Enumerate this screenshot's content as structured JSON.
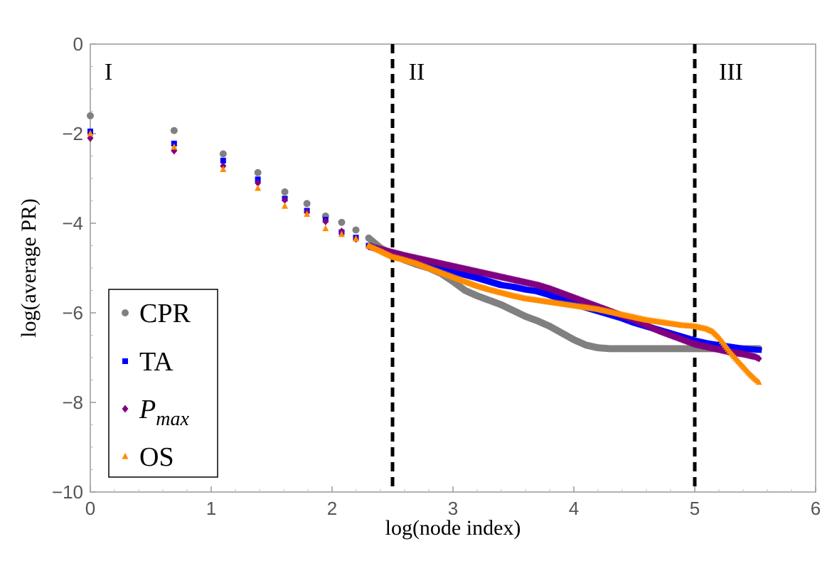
{
  "chart_data": {
    "type": "scatter",
    "title": "",
    "xlabel": "log(node index)",
    "ylabel": "log(average PR)",
    "xlim": [
      0,
      6
    ],
    "ylim": [
      -10,
      0
    ],
    "xticks": [
      "0",
      "1",
      "2",
      "3",
      "4",
      "5",
      "6"
    ],
    "yticks": [
      "0",
      "−2",
      "−4",
      "−6",
      "−8",
      "−10"
    ],
    "grid": false,
    "legend_position": "bottom-left",
    "vertical_lines": [
      {
        "x": 2.5,
        "style": "dashed",
        "color": "#000000"
      },
      {
        "x": 5.0,
        "style": "dashed",
        "color": "#000000"
      }
    ],
    "region_labels": [
      {
        "text": "I",
        "x": 0.15,
        "y": -0.6
      },
      {
        "text": "II",
        "x": 2.7,
        "y": -0.6
      },
      {
        "text": "III",
        "x": 5.3,
        "y": -0.6
      }
    ],
    "series": [
      {
        "name": "CPR",
        "marker": "circle",
        "color": "#808080",
        "x": [
          0,
          0.693,
          1.099,
          1.386,
          1.609,
          1.792,
          1.946,
          2.079,
          2.197,
          2.303,
          2.4,
          2.5,
          2.6,
          2.7,
          2.8,
          2.9,
          3.0,
          3.1,
          3.2,
          3.3,
          3.4,
          3.5,
          3.6,
          3.7,
          3.8,
          3.9,
          4.0,
          4.1,
          4.2,
          4.3,
          4.4,
          4.5,
          4.6,
          4.7,
          4.8,
          4.9,
          5.0,
          5.1,
          5.2,
          5.3,
          5.4,
          5.5,
          5.53
        ],
        "y": [
          -1.6,
          -1.93,
          -2.45,
          -2.87,
          -3.3,
          -3.56,
          -3.84,
          -3.98,
          -4.15,
          -4.33,
          -4.55,
          -4.7,
          -4.82,
          -4.92,
          -5.0,
          -5.12,
          -5.3,
          -5.5,
          -5.62,
          -5.72,
          -5.82,
          -5.95,
          -6.08,
          -6.18,
          -6.3,
          -6.45,
          -6.6,
          -6.72,
          -6.78,
          -6.8,
          -6.8,
          -6.8,
          -6.8,
          -6.8,
          -6.8,
          -6.8,
          -6.8,
          -6.8,
          -6.8,
          -6.8,
          -6.8,
          -6.8,
          -6.8
        ]
      },
      {
        "name": "TA",
        "marker": "square",
        "color": "#0000ff",
        "x": [
          0,
          0.693,
          1.099,
          1.386,
          1.609,
          1.792,
          1.946,
          2.079,
          2.197,
          2.303,
          2.4,
          2.5,
          2.6,
          2.7,
          2.8,
          2.9,
          3.0,
          3.1,
          3.2,
          3.3,
          3.4,
          3.5,
          3.6,
          3.7,
          3.8,
          3.9,
          4.0,
          4.1,
          4.2,
          4.3,
          4.4,
          4.5,
          4.6,
          4.7,
          4.8,
          4.9,
          5.0,
          5.1,
          5.2,
          5.3,
          5.4,
          5.5,
          5.53
        ],
        "y": [
          -1.95,
          -2.22,
          -2.6,
          -3.02,
          -3.45,
          -3.72,
          -3.92,
          -4.2,
          -4.32,
          -4.5,
          -4.6,
          -4.68,
          -4.76,
          -4.82,
          -4.9,
          -4.98,
          -5.08,
          -5.15,
          -5.22,
          -5.3,
          -5.38,
          -5.42,
          -5.48,
          -5.52,
          -5.6,
          -5.7,
          -5.8,
          -5.88,
          -5.96,
          -6.04,
          -6.12,
          -6.22,
          -6.3,
          -6.38,
          -6.46,
          -6.54,
          -6.62,
          -6.68,
          -6.72,
          -6.76,
          -6.8,
          -6.82,
          -6.83
        ]
      },
      {
        "name": "P_max",
        "marker": "diamond",
        "color": "#800080",
        "x": [
          0,
          0.693,
          1.099,
          1.386,
          1.609,
          1.792,
          1.946,
          2.079,
          2.197,
          2.303,
          2.4,
          2.5,
          2.6,
          2.7,
          2.8,
          2.9,
          3.0,
          3.1,
          3.2,
          3.3,
          3.4,
          3.5,
          3.6,
          3.7,
          3.8,
          3.9,
          4.0,
          4.1,
          4.2,
          4.3,
          4.4,
          4.5,
          4.6,
          4.7,
          4.8,
          4.9,
          5.0,
          5.1,
          5.2,
          5.3,
          5.4,
          5.5,
          5.53
        ],
        "y": [
          -2.1,
          -2.38,
          -2.72,
          -3.1,
          -3.48,
          -3.75,
          -3.96,
          -4.18,
          -4.35,
          -4.52,
          -4.58,
          -4.65,
          -4.72,
          -4.78,
          -4.84,
          -4.9,
          -4.96,
          -5.02,
          -5.08,
          -5.14,
          -5.2,
          -5.26,
          -5.32,
          -5.38,
          -5.46,
          -5.56,
          -5.66,
          -5.76,
          -5.86,
          -5.96,
          -6.06,
          -6.16,
          -6.28,
          -6.4,
          -6.5,
          -6.6,
          -6.7,
          -6.76,
          -6.82,
          -6.88,
          -6.92,
          -6.98,
          -7.02
        ]
      },
      {
        "name": "OS",
        "marker": "triangle",
        "color": "#ff8c00",
        "x": [
          0,
          0.693,
          1.099,
          1.386,
          1.609,
          1.792,
          1.946,
          2.079,
          2.197,
          2.303,
          2.4,
          2.5,
          2.6,
          2.7,
          2.8,
          2.9,
          3.0,
          3.1,
          3.2,
          3.3,
          3.4,
          3.5,
          3.6,
          3.7,
          3.8,
          3.9,
          4.0,
          4.1,
          4.2,
          4.3,
          4.4,
          4.5,
          4.6,
          4.7,
          4.8,
          4.9,
          5.0,
          5.1,
          5.15,
          5.2,
          5.25,
          5.3,
          5.35,
          5.4,
          5.45,
          5.5,
          5.53
        ],
        "y": [
          -2.0,
          -2.3,
          -2.8,
          -3.22,
          -3.62,
          -3.8,
          -4.12,
          -4.25,
          -4.35,
          -4.5,
          -4.62,
          -4.75,
          -4.82,
          -4.9,
          -5.0,
          -5.1,
          -5.2,
          -5.3,
          -5.4,
          -5.48,
          -5.55,
          -5.62,
          -5.68,
          -5.72,
          -5.76,
          -5.8,
          -5.84,
          -5.88,
          -5.92,
          -5.98,
          -6.04,
          -6.1,
          -6.16,
          -6.2,
          -6.24,
          -6.28,
          -6.3,
          -6.36,
          -6.42,
          -6.55,
          -6.72,
          -6.9,
          -7.05,
          -7.2,
          -7.35,
          -7.48,
          -7.55
        ]
      }
    ]
  },
  "legend": {
    "entries": [
      {
        "label": "CPR",
        "italic": false
      },
      {
        "label": "TA",
        "italic": false
      },
      {
        "label": "P",
        "sub": "max",
        "italic": true
      },
      {
        "label": "OS",
        "italic": false
      }
    ]
  }
}
